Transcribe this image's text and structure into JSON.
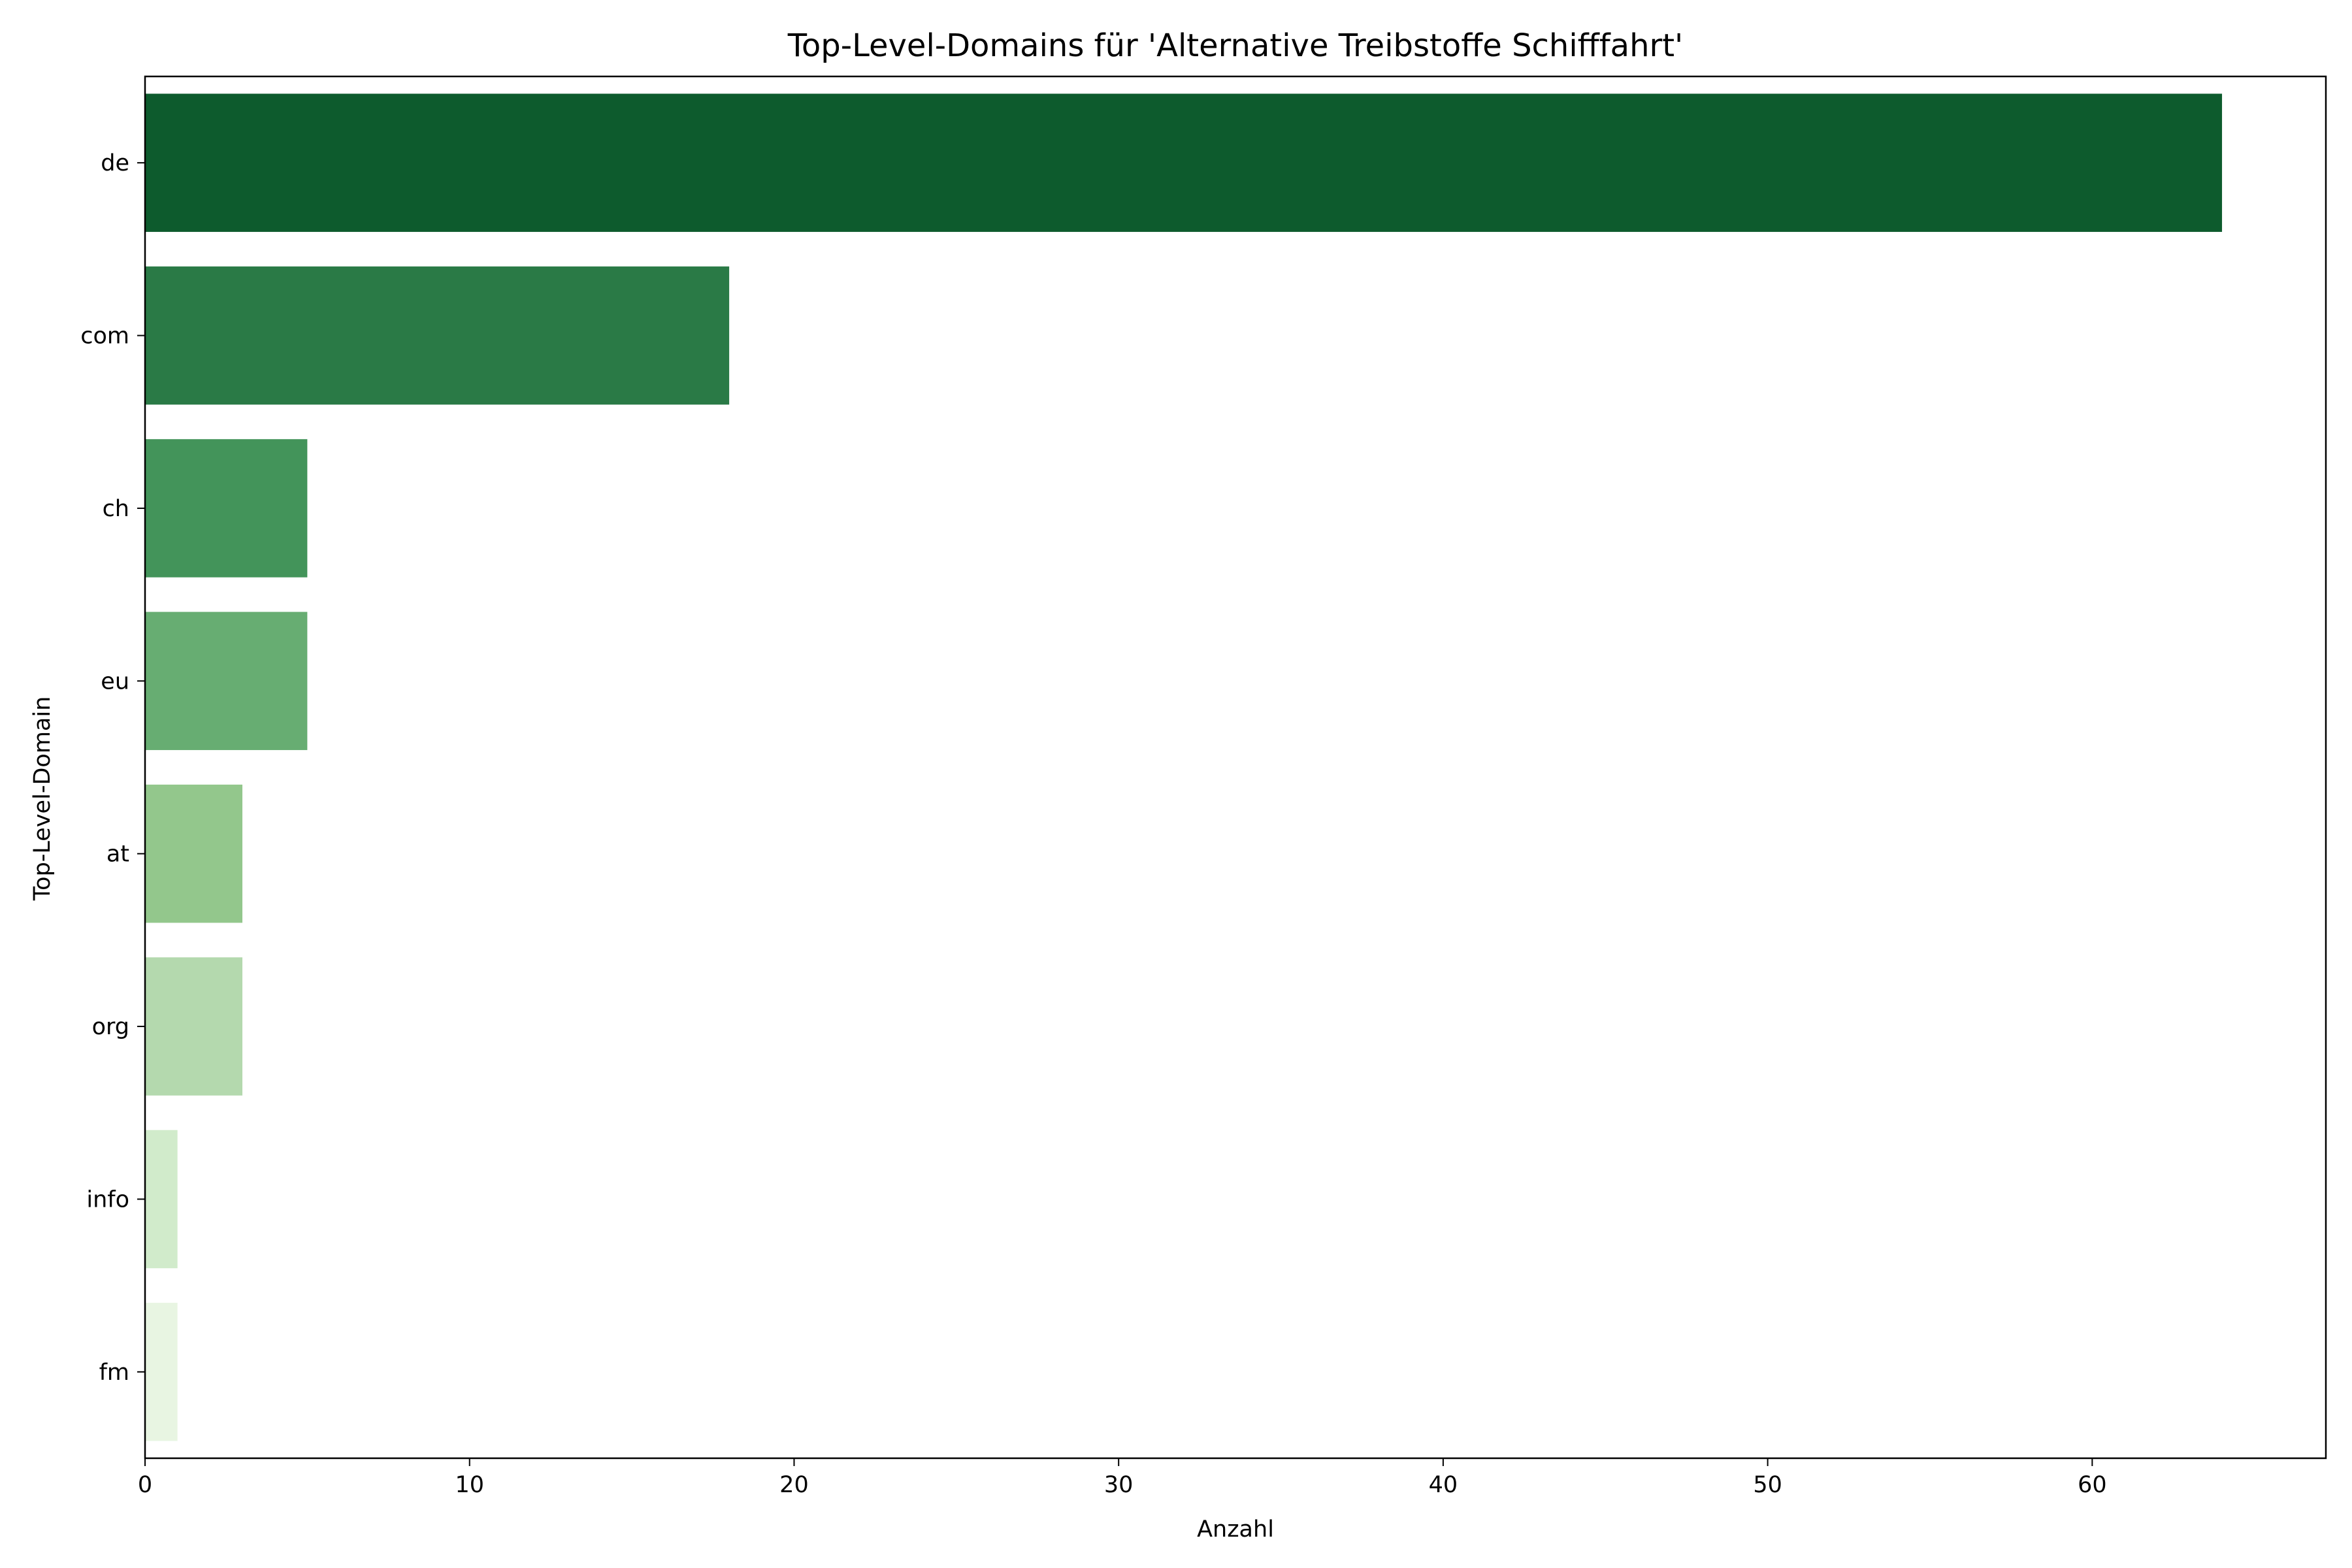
{
  "chart_data": {
    "type": "bar",
    "orientation": "horizontal",
    "title": "Top-Level-Domains für 'Alternative Treibstoffe Schifffahrt'",
    "xlabel": "Anzahl",
    "ylabel": "Top-Level-Domain",
    "categories": [
      "de",
      "com",
      "ch",
      "eu",
      "at",
      "org",
      "info",
      "fm"
    ],
    "values": [
      64,
      18,
      5,
      5,
      3,
      3,
      1,
      1
    ],
    "colors": [
      "#0d5b2d",
      "#2a7a46",
      "#43945a",
      "#67ad72",
      "#93c78c",
      "#b4d9ae",
      "#d1ebcb",
      "#e8f5e2"
    ],
    "xlim": [
      0,
      67.2
    ],
    "xticks": [
      0,
      10,
      20,
      30,
      40,
      50,
      60
    ],
    "grid": false,
    "legend": "none"
  }
}
